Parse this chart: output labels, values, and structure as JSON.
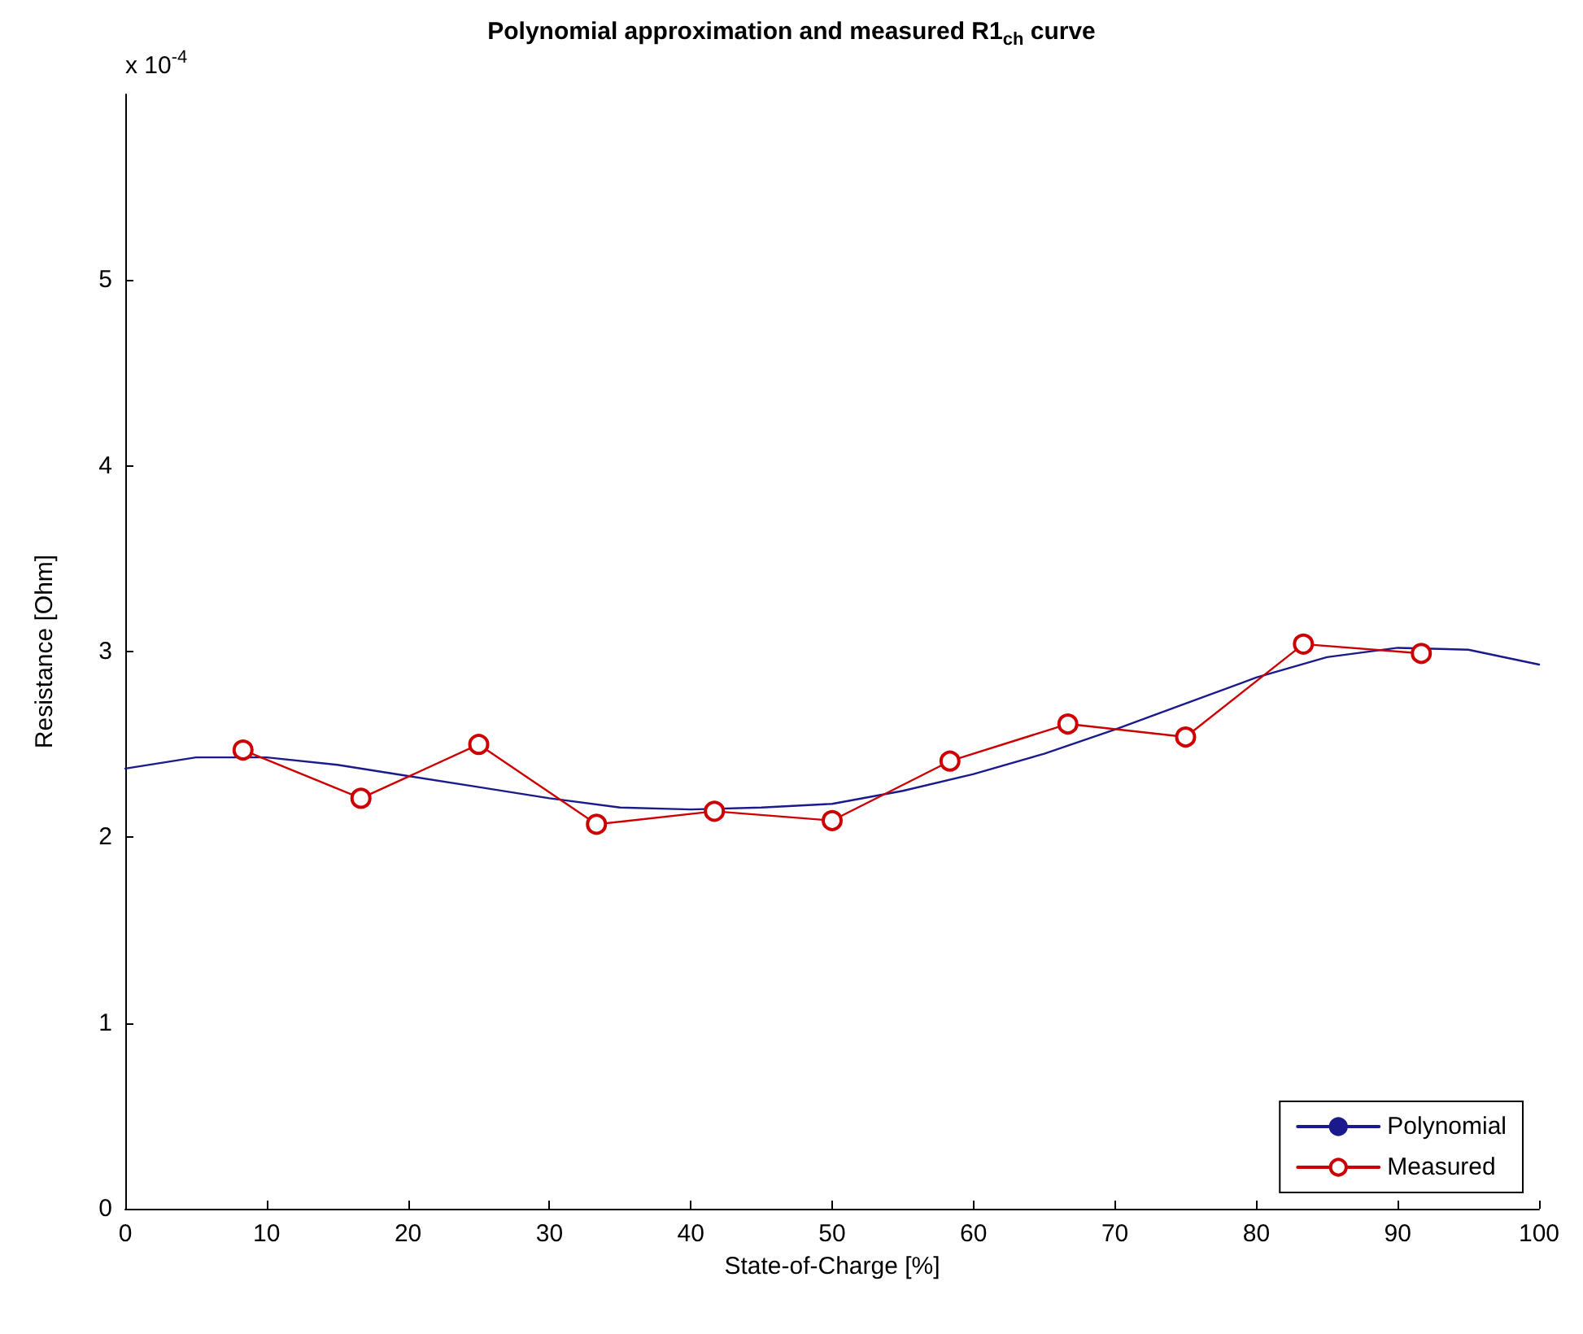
{
  "chart_data": {
    "type": "line",
    "title": "Polynomial approximation and measured R1$_{ch}$ curve",
    "xlabel": "State-of-Charge [%]",
    "ylabel": "Resistance [Ohm]",
    "annotations": [
      "x 10$^{-4}$"
    ],
    "xlim": [
      0,
      100
    ],
    "xticks": [
      0,
      10,
      20,
      30,
      40,
      50,
      60,
      70,
      80,
      90,
      100
    ],
    "ylim": [
      0,
      6
    ],
    "yticks": [
      0,
      1,
      2,
      3,
      4,
      5
    ],
    "grid": false,
    "legend": "bottom right",
    "series": [
      {
        "name": "Polynomial",
        "color": "#1a1a8c",
        "marker": "none",
        "line_style": "solid",
        "x": [
          0,
          5,
          10,
          15,
          20,
          25,
          30,
          35,
          40,
          45,
          50,
          55,
          60,
          65,
          70,
          75,
          80,
          85,
          90,
          95,
          100
        ],
        "values": [
          2.37,
          2.43,
          2.43,
          2.39,
          2.33,
          2.27,
          2.21,
          2.16,
          2.15,
          2.16,
          2.18,
          2.25,
          2.34,
          2.45,
          2.58,
          2.72,
          2.86,
          2.97,
          3.02,
          3.01,
          2.93
        ]
      },
      {
        "name": "Measured",
        "color": "#cc0000",
        "marker": "circle",
        "line_style": "solid",
        "x": [
          8.33,
          16.67,
          25,
          33.33,
          41.67,
          50,
          58.33,
          66.67,
          75,
          83.33,
          91.67
        ],
        "values": [
          2.47,
          2.21,
          2.5,
          2.07,
          2.14,
          2.09,
          2.41,
          2.61,
          2.54,
          3.04,
          2.99
        ]
      }
    ]
  }
}
